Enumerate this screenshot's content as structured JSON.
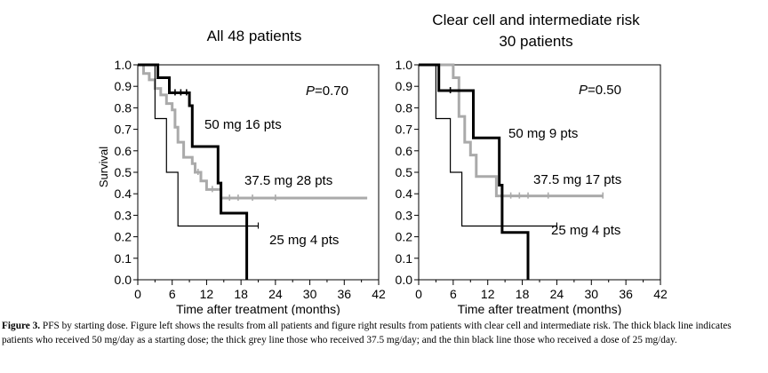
{
  "chart_data": [
    {
      "type": "line",
      "title": "All 48 patients",
      "xlabel": "Time after treatment (months)",
      "ylabel": "Survival",
      "xlim": [
        0,
        42
      ],
      "ylim": [
        0,
        1
      ],
      "x_ticks": [
        "0",
        "6",
        "12",
        "18",
        "24",
        "30",
        "36",
        "42"
      ],
      "y_ticks": [
        "0.0",
        "0.1",
        "0.2",
        "0.3",
        "0.4",
        "0.5",
        "0.6",
        "0.7",
        "0.8",
        "0.9",
        "1.0"
      ],
      "minor_x_ticks": [
        3,
        9,
        15,
        21,
        27,
        33,
        39
      ],
      "annotation_p": "P",
      "annotation_value": "=0.70",
      "grid": false,
      "series": [
        {
          "name": "50 mg 16 pts",
          "color": "#000000",
          "style": "thick",
          "points": [
            [
              0,
              1.0
            ],
            [
              3.5,
              1.0
            ],
            [
              3.5,
              0.94
            ],
            [
              5.5,
              0.94
            ],
            [
              5.5,
              0.87
            ],
            [
              9,
              0.87
            ],
            [
              9,
              0.81
            ],
            [
              9.5,
              0.81
            ],
            [
              9.5,
              0.62
            ],
            [
              14,
              0.62
            ],
            [
              14,
              0.45
            ],
            [
              14.5,
              0.45
            ],
            [
              14.5,
              0.31
            ],
            [
              19,
              0.31
            ],
            [
              19,
              0.0
            ]
          ],
          "censor": [
            [
              6.5,
              0.87
            ],
            [
              7.5,
              0.87
            ],
            [
              8.5,
              0.87
            ]
          ]
        },
        {
          "name": "37.5 mg 28 pts",
          "color": "#aaaaaa",
          "style": "thick",
          "points": [
            [
              0,
              1.0
            ],
            [
              1,
              1.0
            ],
            [
              1,
              0.96
            ],
            [
              2,
              0.96
            ],
            [
              2,
              0.93
            ],
            [
              3,
              0.93
            ],
            [
              3,
              0.89
            ],
            [
              4,
              0.89
            ],
            [
              4,
              0.86
            ],
            [
              5,
              0.86
            ],
            [
              5,
              0.82
            ],
            [
              6,
              0.82
            ],
            [
              6,
              0.79
            ],
            [
              6.5,
              0.79
            ],
            [
              6.5,
              0.71
            ],
            [
              7,
              0.71
            ],
            [
              7,
              0.64
            ],
            [
              8,
              0.64
            ],
            [
              8,
              0.57
            ],
            [
              9.5,
              0.57
            ],
            [
              9.5,
              0.54
            ],
            [
              10,
              0.54
            ],
            [
              10,
              0.5
            ],
            [
              11,
              0.5
            ],
            [
              11,
              0.46
            ],
            [
              12,
              0.46
            ],
            [
              12,
              0.42
            ],
            [
              14.5,
              0.42
            ],
            [
              14.5,
              0.38
            ],
            [
              40,
              0.38
            ]
          ],
          "censor": [
            [
              10.5,
              0.5
            ],
            [
              13,
              0.42
            ],
            [
              16,
              0.38
            ],
            [
              17.5,
              0.38
            ],
            [
              20,
              0.38
            ],
            [
              24,
              0.38
            ]
          ]
        },
        {
          "name": "25 mg 4 pts",
          "color": "#000000",
          "style": "thin",
          "points": [
            [
              0,
              1.0
            ],
            [
              3,
              1.0
            ],
            [
              3,
              0.75
            ],
            [
              5,
              0.75
            ],
            [
              5,
              0.5
            ],
            [
              7,
              0.5
            ],
            [
              7,
              0.25
            ],
            [
              21,
              0.25
            ]
          ],
          "censor": [
            [
              21,
              0.25
            ]
          ]
        }
      ]
    },
    {
      "type": "line",
      "title": "Clear cell and intermediate risk",
      "subtitle": "30 patients",
      "xlabel": "Time after treatment (months)",
      "ylabel": "",
      "xlim": [
        0,
        42
      ],
      "ylim": [
        0,
        1
      ],
      "x_ticks": [
        "0",
        "6",
        "12",
        "18",
        "24",
        "30",
        "36",
        "42"
      ],
      "y_ticks": [
        "0.0",
        "0.1",
        "0.2",
        "0.3",
        "0.4",
        "0.5",
        "0.6",
        "0.7",
        "0.8",
        "0.9",
        "1.0"
      ],
      "minor_x_ticks": [
        3,
        9,
        15,
        21,
        27,
        33,
        39
      ],
      "annotation_p": "P",
      "annotation_value": "=0.50",
      "grid": false,
      "series": [
        {
          "name": "50 mg 9 pts",
          "color": "#000000",
          "style": "thick",
          "points": [
            [
              0,
              1.0
            ],
            [
              3.5,
              1.0
            ],
            [
              3.5,
              0.88
            ],
            [
              9.5,
              0.88
            ],
            [
              9.5,
              0.66
            ],
            [
              14,
              0.66
            ],
            [
              14,
              0.44
            ],
            [
              14.5,
              0.44
            ],
            [
              14.5,
              0.22
            ],
            [
              19,
              0.22
            ],
            [
              19,
              0.0
            ]
          ],
          "censor": [
            [
              5.5,
              0.88
            ]
          ]
        },
        {
          "name": "37.5 mg 17 pts",
          "color": "#aaaaaa",
          "style": "thick",
          "points": [
            [
              0,
              1.0
            ],
            [
              6,
              1.0
            ],
            [
              6,
              0.94
            ],
            [
              7,
              0.94
            ],
            [
              7,
              0.76
            ],
            [
              8,
              0.76
            ],
            [
              8,
              0.64
            ],
            [
              9,
              0.64
            ],
            [
              9,
              0.58
            ],
            [
              10,
              0.58
            ],
            [
              10,
              0.48
            ],
            [
              13.5,
              0.48
            ],
            [
              13.5,
              0.39
            ],
            [
              32,
              0.39
            ]
          ],
          "censor": [
            [
              16,
              0.39
            ],
            [
              17.5,
              0.39
            ],
            [
              19,
              0.39
            ],
            [
              22.5,
              0.39
            ],
            [
              32,
              0.39
            ]
          ]
        },
        {
          "name": "25 mg 4 pts",
          "color": "#000000",
          "style": "thin",
          "points": [
            [
              0,
              1.0
            ],
            [
              3,
              1.0
            ],
            [
              3,
              0.75
            ],
            [
              5.5,
              0.75
            ],
            [
              5.5,
              0.5
            ],
            [
              7.5,
              0.5
            ],
            [
              7.5,
              0.25
            ],
            [
              24,
              0.25
            ]
          ],
          "censor": [
            [
              24,
              0.25
            ]
          ]
        }
      ]
    }
  ],
  "caption": {
    "label": "Figure 3.",
    "text": "PFS by starting dose. Figure left shows the results from all patients and figure right results from patients with clear cell and intermediate risk. The thick black line indicates patients who received 50 mg/day as a starting dose; the thick grey line those who received 37.5 mg/day; and the thin black line those who received a dose of 25 mg/day."
  }
}
